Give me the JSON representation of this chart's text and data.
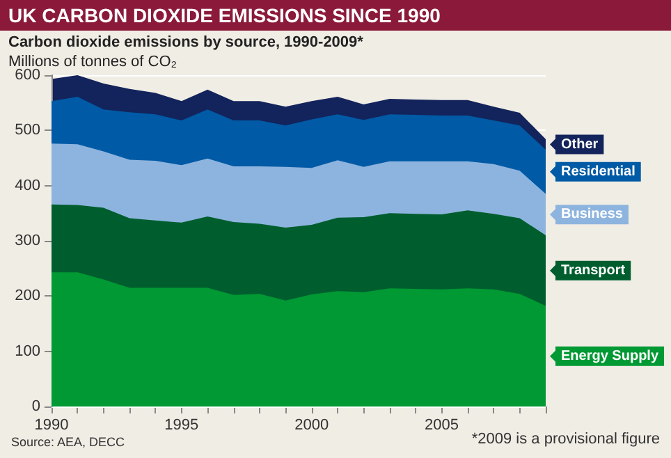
{
  "chart_data": {
    "type": "area",
    "stacked": true,
    "title": "UK CARBON DIOXIDE EMISSIONS SINCE 1990",
    "subtitle": "Carbon dioxide emissions by source, 1990-2009*",
    "ylabel": "Millions of tonnes of CO₂",
    "annotations": [
      "Source: AEA, DECC",
      "*2009 is a provisional figure"
    ],
    "x": [
      1990,
      1991,
      1992,
      1993,
      1994,
      1995,
      1996,
      1997,
      1998,
      1999,
      2000,
      2001,
      2002,
      2003,
      2004,
      2005,
      2006,
      2007,
      2008,
      2009
    ],
    "series": [
      {
        "name": "Energy Supply",
        "color": "#009933",
        "values": [
          243,
          243,
          230,
          215,
          215,
          215,
          215,
          202,
          204,
          192,
          203,
          209,
          207,
          214,
          213,
          212,
          214,
          212,
          204,
          182
        ]
      },
      {
        "name": "Transport",
        "color": "#005e2e",
        "values": [
          123,
          122,
          130,
          126,
          122,
          118,
          129,
          132,
          127,
          132,
          126,
          133,
          136,
          136,
          136,
          136,
          141,
          137,
          137,
          128
        ]
      },
      {
        "name": "Business",
        "color": "#8db4de",
        "values": [
          110,
          110,
          102,
          106,
          108,
          104,
          105,
          101,
          104,
          110,
          103,
          104,
          91,
          94,
          95,
          96,
          89,
          90,
          86,
          75
        ]
      },
      {
        "name": "Residential",
        "color": "#005aa5",
        "values": [
          77,
          86,
          76,
          86,
          84,
          81,
          89,
          83,
          83,
          75,
          88,
          83,
          85,
          85,
          84,
          83,
          83,
          79,
          82,
          80
        ]
      },
      {
        "name": "Other",
        "color": "#13235b",
        "values": [
          40,
          39,
          47,
          42,
          39,
          35,
          36,
          35,
          35,
          34,
          33,
          32,
          28,
          28,
          28,
          28,
          28,
          25,
          23,
          19
        ]
      }
    ],
    "xlim": [
      1990,
      2009
    ],
    "xticks": [
      1990,
      {
        "value": 1991,
        "label": null
      },
      {
        "value": 1992,
        "label": null
      },
      {
        "value": 1993,
        "label": null
      },
      {
        "value": 1994,
        "label": null
      },
      1995,
      {
        "value": 1996,
        "label": null
      },
      {
        "value": 1997,
        "label": null
      },
      {
        "value": 1998,
        "label": null
      },
      {
        "value": 1999,
        "label": null
      },
      2000,
      {
        "value": 2001,
        "label": null
      },
      {
        "value": 2002,
        "label": null
      },
      {
        "value": 2003,
        "label": null
      },
      {
        "value": 2004,
        "label": null
      },
      2005,
      {
        "value": 2006,
        "label": null
      },
      {
        "value": 2007,
        "label": null
      },
      {
        "value": 2008,
        "label": null
      },
      {
        "value": 2009,
        "label": null
      }
    ],
    "ylim": [
      0,
      600
    ],
    "yticks": [
      0,
      100,
      200,
      300,
      400,
      500,
      600
    ],
    "grid": "y",
    "legend": "right"
  }
}
